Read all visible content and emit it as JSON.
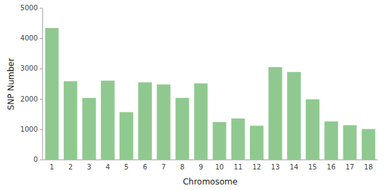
{
  "chart_data": {
    "type": "bar",
    "categories": [
      "1",
      "2",
      "3",
      "4",
      "5",
      "6",
      "7",
      "8",
      "9",
      "10",
      "11",
      "12",
      "13",
      "14",
      "15",
      "16",
      "17",
      "18"
    ],
    "values": [
      4350,
      2600,
      2050,
      2620,
      1580,
      2560,
      2490,
      2050,
      2530,
      1250,
      1370,
      1130,
      3060,
      2900,
      2000,
      1270,
      1150,
      1020
    ],
    "color": "#90c990",
    "xlabel": "Chromosome",
    "ylabel": "SNP Number",
    "ylim": [
      0,
      5000
    ],
    "yticks": [
      0,
      1000,
      2000,
      3000,
      4000,
      5000
    ],
    "grid": false
  }
}
